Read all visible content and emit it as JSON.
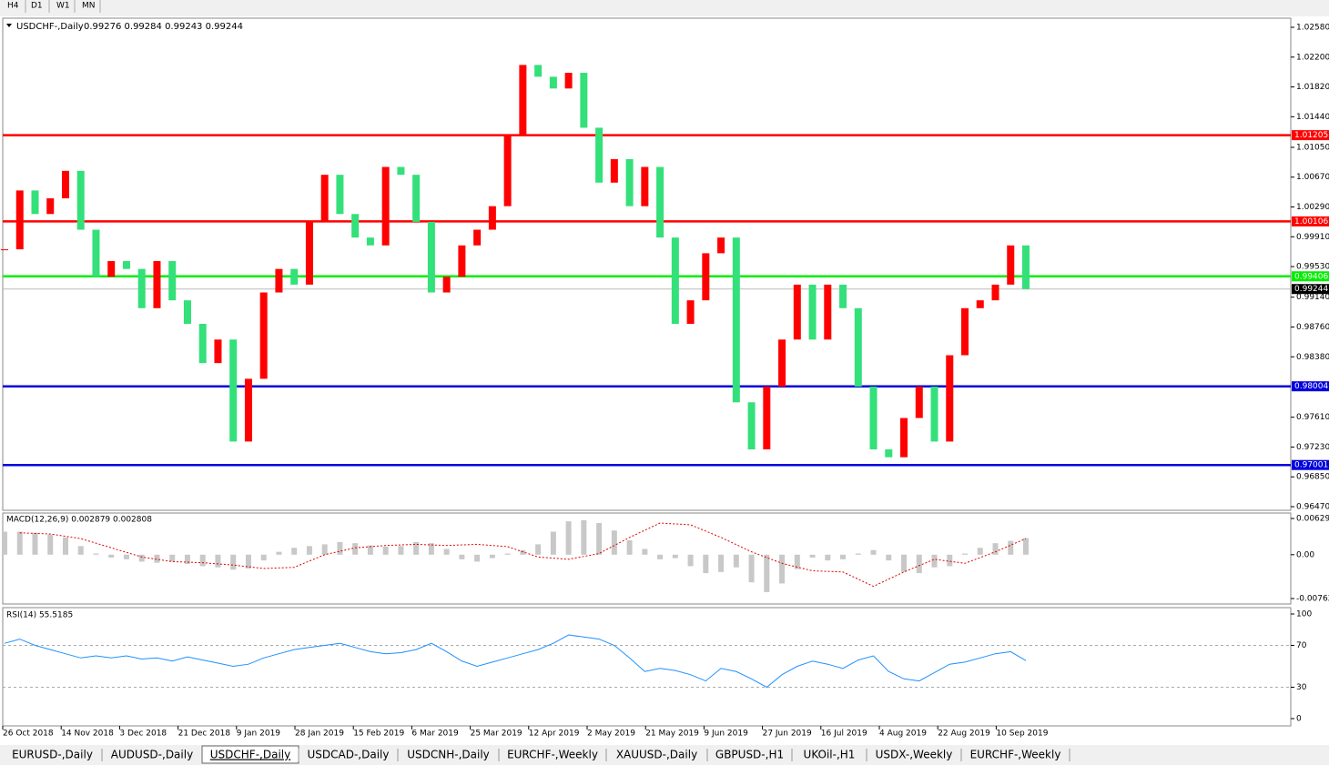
{
  "toolbar": {
    "timeframes": [
      "H4",
      "D1",
      "W1",
      "MN"
    ]
  },
  "chart_data": {
    "type": "candlestick",
    "title": "USDCHF-,Daily",
    "quote": "0.99276 0.99284 0.99243 0.99244",
    "dates": [
      "26 Oct 2018",
      "14 Nov 2018",
      "3 Dec 2018",
      "21 Dec 2018",
      "9 Jan 2019",
      "28 Jan 2019",
      "15 Feb 2019",
      "6 Mar 2019",
      "25 Mar 2019",
      "12 Apr 2019",
      "2 May 2019",
      "21 May 2019",
      "9 Jun 2019",
      "27 Jun 2019",
      "16 Jul 2019",
      "4 Aug 2019",
      "22 Aug 2019",
      "10 Sep 2019"
    ],
    "closes": [
      0.9975,
      1.005,
      1.002,
      1.004,
      1.0075,
      1.0,
      0.994,
      0.996,
      0.995,
      0.99,
      0.996,
      0.991,
      0.988,
      0.983,
      0.986,
      0.973,
      0.981,
      0.992,
      0.995,
      0.993,
      1.001,
      1.007,
      1.002,
      0.999,
      0.998,
      1.008,
      1.007,
      1.001,
      0.992,
      0.994,
      0.998,
      1.0,
      1.003,
      1.012,
      1.021,
      1.0195,
      1.018,
      1.02,
      1.013,
      1.006,
      1.009,
      1.003,
      1.008,
      0.999,
      0.988,
      0.991,
      0.997,
      0.999,
      0.978,
      0.972,
      0.98,
      0.986,
      0.993,
      0.986,
      0.993,
      0.99,
      0.98,
      0.972,
      0.971,
      0.976,
      0.98,
      0.973,
      0.984,
      0.99,
      0.991,
      0.993,
      0.998,
      0.99244
    ],
    "up_color": "#ff0000",
    "down_color": "#33e07a",
    "ylim": [
      0.9647,
      1.0258
    ],
    "yticks": [
      {
        "value": 1.0258,
        "label": "1.02580"
      },
      {
        "value": 1.022,
        "label": "1.02200"
      },
      {
        "value": 1.0182,
        "label": "1.01820"
      },
      {
        "value": 1.0144,
        "label": "1.01440"
      },
      {
        "value": 1.0105,
        "label": "1.01050"
      },
      {
        "value": 1.0067,
        "label": "1.00670"
      },
      {
        "value": 1.0029,
        "label": "1.00290"
      },
      {
        "value": 0.9991,
        "label": "0.99910"
      },
      {
        "value": 0.9953,
        "label": "0.99530"
      },
      {
        "value": 0.9914,
        "label": "0.99140"
      },
      {
        "value": 0.9876,
        "label": "0.98760"
      },
      {
        "value": 0.9838,
        "label": "0.98380"
      },
      {
        "value": 0.9761,
        "label": "0.97610"
      },
      {
        "value": 0.9723,
        "label": "0.97230"
      },
      {
        "value": 0.9685,
        "label": "0.96850"
      },
      {
        "value": 0.9647,
        "label": "0.96470"
      }
    ],
    "levels": [
      {
        "value": 1.01205,
        "label": "1.01205",
        "color": "#ff0000"
      },
      {
        "value": 1.00106,
        "label": "1.00106",
        "color": "#ff0000"
      },
      {
        "value": 0.99406,
        "label": "0.99406",
        "color": "#00ee00"
      },
      {
        "value": 0.98004,
        "label": "0.98004",
        "color": "#0000dd"
      },
      {
        "value": 0.97001,
        "label": "0.97001",
        "color": "#0000dd"
      }
    ],
    "last": {
      "value": 0.99244,
      "label": "0.99244"
    }
  },
  "macd": {
    "title": "MACD(12,26,9) 0.002879 0.002808",
    "main": [
      0.004,
      0.004,
      0.0038,
      0.0035,
      0.003,
      0.0015,
      0.0002,
      -0.0005,
      -0.0008,
      -0.0012,
      -0.0014,
      -0.0012,
      -0.0016,
      -0.002,
      -0.0022,
      -0.0026,
      -0.0024,
      -0.001,
      0.0005,
      0.0012,
      0.0015,
      0.0018,
      0.0022,
      0.002,
      0.0016,
      0.0014,
      0.0015,
      0.0022,
      0.002,
      0.001,
      -0.0008,
      -0.0012,
      -0.0006,
      0.0002,
      0.0008,
      0.0018,
      0.004,
      0.0058,
      0.006,
      0.0055,
      0.0042,
      0.0025,
      0.001,
      -0.0008,
      -0.0006,
      -0.002,
      -0.0032,
      -0.003,
      -0.0022,
      -0.0048,
      -0.0065,
      -0.005,
      -0.0025,
      -0.0005,
      -0.001,
      -0.0008,
      0.0002,
      0.0008,
      -0.001,
      -0.003,
      -0.0032,
      -0.0022,
      -0.002,
      0.0002,
      0.0012,
      0.002,
      0.0024,
      0.002879
    ],
    "signal": [
      0.0038,
      0.0036,
      0.0028,
      0.0012,
      -0.0004,
      -0.0012,
      -0.0014,
      -0.0018,
      -0.0024,
      -0.0022,
      0.0,
      0.0012,
      0.0016,
      0.0018,
      0.0016,
      0.0018,
      0.0014,
      -0.0004,
      -0.0008,
      0.0002,
      0.003,
      0.0055,
      0.0052,
      0.003,
      0.0005,
      -0.0015,
      -0.0028,
      -0.003,
      -0.0055,
      -0.003,
      -0.0008,
      -0.0015,
      0.0005,
      0.002808
    ],
    "ylim": [
      -0.00762,
      0.006293
    ],
    "yticks": [
      {
        "value": 0.006293,
        "label": "0.006293"
      },
      {
        "value": 0,
        "label": "0.00"
      },
      {
        "value": -0.00762,
        "label": "-0.00762"
      }
    ]
  },
  "rsi": {
    "title": "RSI(14) 55.5185",
    "values": [
      72,
      76,
      70,
      66,
      62,
      58,
      60,
      58,
      60,
      57,
      58,
      55,
      59,
      56,
      53,
      50,
      52,
      58,
      62,
      66,
      68,
      70,
      72,
      68,
      64,
      62,
      63,
      66,
      72,
      64,
      55,
      50,
      54,
      58,
      62,
      66,
      72,
      80,
      78,
      76,
      70,
      58,
      45,
      48,
      46,
      42,
      36,
      48,
      45,
      38,
      30,
      42,
      50,
      55,
      52,
      48,
      56,
      60,
      45,
      38,
      36,
      44,
      52,
      54,
      58,
      62,
      64,
      55.5185
    ],
    "ylim": [
      0,
      100
    ],
    "yticks": [
      100,
      70,
      30,
      0
    ],
    "levels": [
      70,
      30
    ]
  },
  "tabs": {
    "items": [
      "EURUSD-,Daily",
      "AUDUSD-,Daily",
      "USDCHF-,Daily",
      "USDCAD-,Daily",
      "USDCNH-,Daily",
      "EURCHF-,Weekly",
      "XAUUSD-,Daily",
      "GBPUSD-,H1",
      "UKOil-,H1",
      "USDX-,Weekly",
      "EURCHF-,Weekly"
    ],
    "active": 2
  }
}
